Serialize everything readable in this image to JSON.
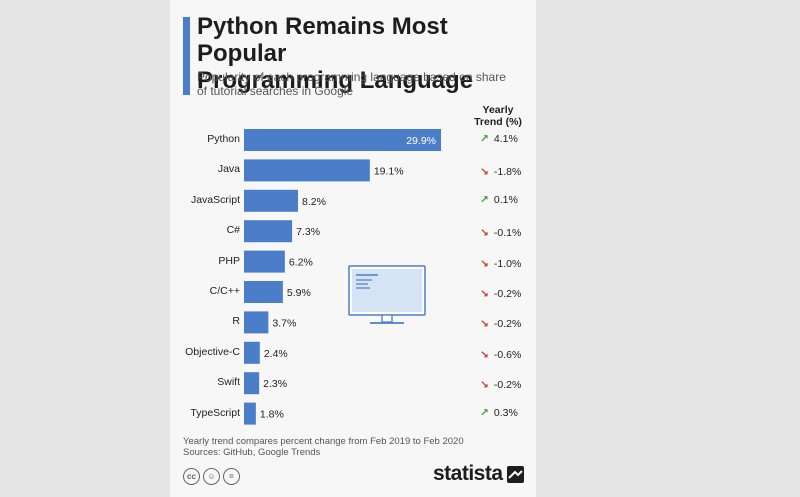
{
  "title": "Python Remains Most Popular\nProgramming Language",
  "subtitle": "Popularity of each programming language based on share\nof tutorial searches in Google",
  "trend_header": "Yearly\nTrend (%)",
  "colors": {
    "accent": "#4a7ec9",
    "bar": "#4a7ec9",
    "up": "#3f9a3a",
    "down": "#c0392b"
  },
  "chart_data": {
    "type": "bar",
    "orientation": "horizontal",
    "categories": [
      "Python",
      "Java",
      "JavaScript",
      "C#",
      "PHP",
      "C/C++",
      "R",
      "Objective-C",
      "Swift",
      "TypeScript"
    ],
    "values": [
      29.9,
      19.1,
      8.2,
      7.3,
      6.2,
      5.9,
      3.7,
      2.4,
      2.3,
      1.8
    ],
    "value_labels": [
      "29.9%",
      "19.1%",
      "8.2%",
      "7.3%",
      "6.2%",
      "5.9%",
      "3.7%",
      "2.4%",
      "2.3%",
      "1.8%"
    ],
    "yearly_trend": [
      4.1,
      -1.8,
      0.1,
      -0.1,
      -1.0,
      -0.2,
      -0.2,
      -0.6,
      -0.2,
      0.3
    ],
    "yearly_trend_labels": [
      "4.1%",
      "-1.8%",
      "0.1%",
      "-0.1%",
      "-1.0%",
      "-0.2%",
      "-0.2%",
      "-0.6%",
      "-0.2%",
      "0.3%"
    ],
    "xlim": [
      0,
      29.9
    ],
    "grid": false,
    "legend": "none"
  },
  "footnote": {
    "line1": "Yearly trend compares percent change from Feb 2019 to Feb 2020",
    "line2": "Sources: GitHub, Google Trends"
  },
  "license_icons": [
    "cc-icon",
    "by-icon",
    "nd-icon"
  ],
  "brand": "statista"
}
